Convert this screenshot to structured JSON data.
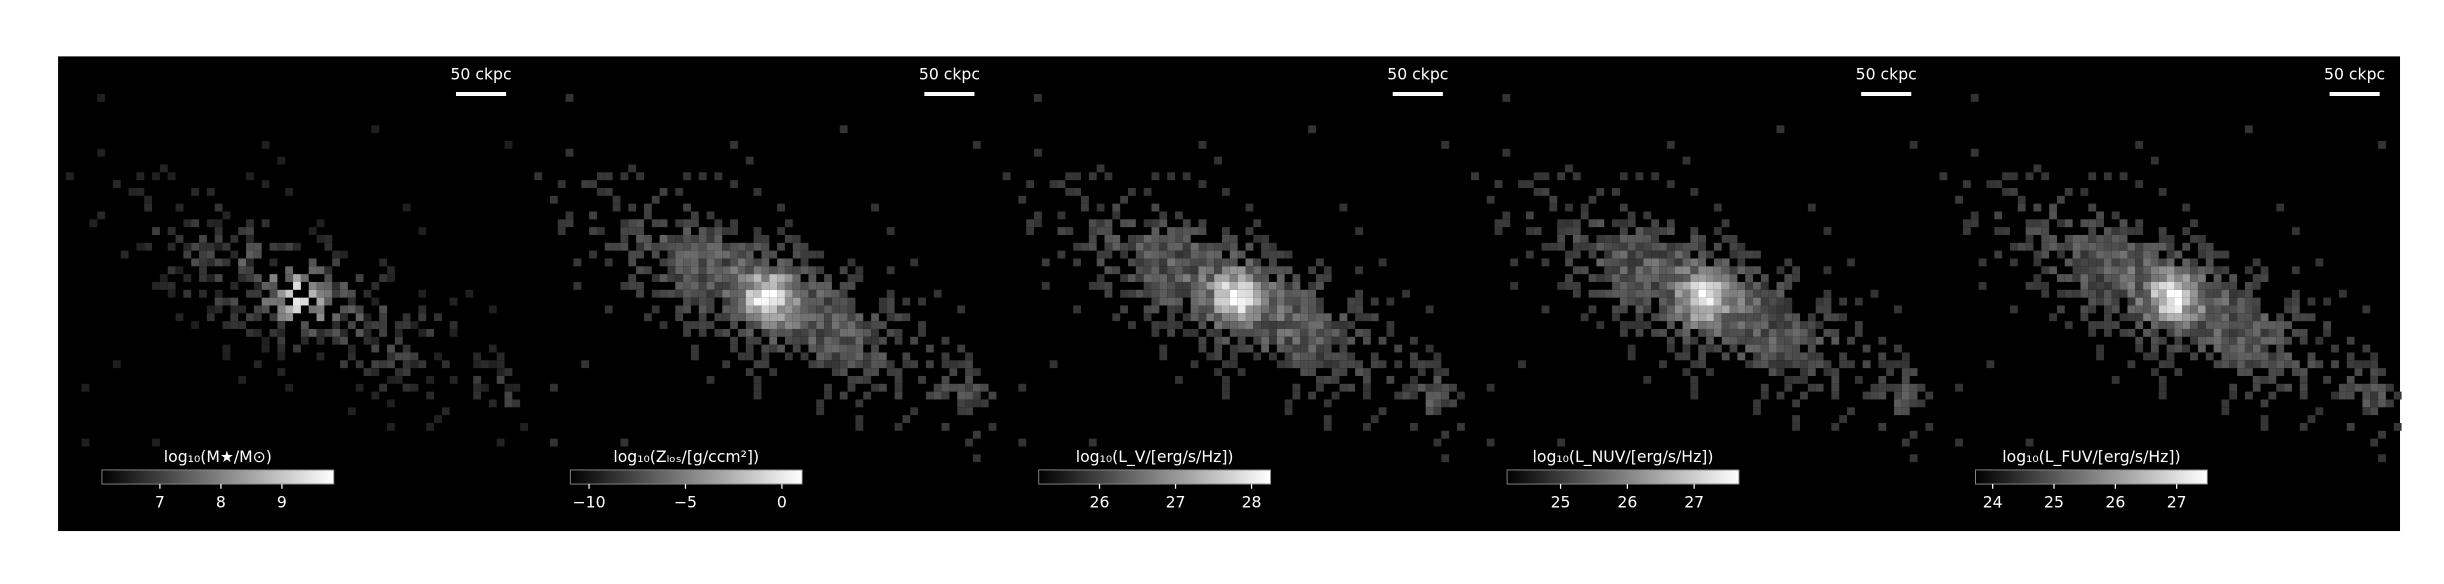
{
  "chart_data": [
    {
      "type": "image",
      "scalebar_label": "50 ckpc",
      "colorbar_label": "log₁₀(M★/M⊙)",
      "clim": [
        6.05,
        9.85
      ],
      "cticks": [
        7,
        8,
        9
      ]
    },
    {
      "type": "image",
      "scalebar_label": "50 ckpc",
      "colorbar_label": "log₁₀(Zₗₒₛ/[g/ccm²])",
      "clim": [
        -10.97,
        1.05
      ],
      "cticks": [
        {
          "value": -10,
          "label": "−10"
        },
        {
          "value": -5,
          "label": "−5"
        },
        0
      ]
    },
    {
      "type": "image",
      "scalebar_label": "50 ckpc",
      "colorbar_label": "log₁₀(L_V/[erg/s/Hz])",
      "clim": [
        25.2,
        28.25
      ],
      "cticks": [
        26,
        27,
        28
      ]
    },
    {
      "type": "image",
      "scalebar_label": "50 ckpc",
      "colorbar_label": "log₁₀(L_NUV/[erg/s/Hz])",
      "clim": [
        24.2,
        27.67
      ],
      "cticks": [
        25,
        26,
        27
      ]
    },
    {
      "type": "image",
      "scalebar_label": "50 ckpc",
      "colorbar_label": "log₁₀(L_FUV/[erg/s/Hz])",
      "clim": [
        23.72,
        27.5
      ],
      "cticks": [
        24,
        25,
        26,
        27
      ]
    }
  ]
}
